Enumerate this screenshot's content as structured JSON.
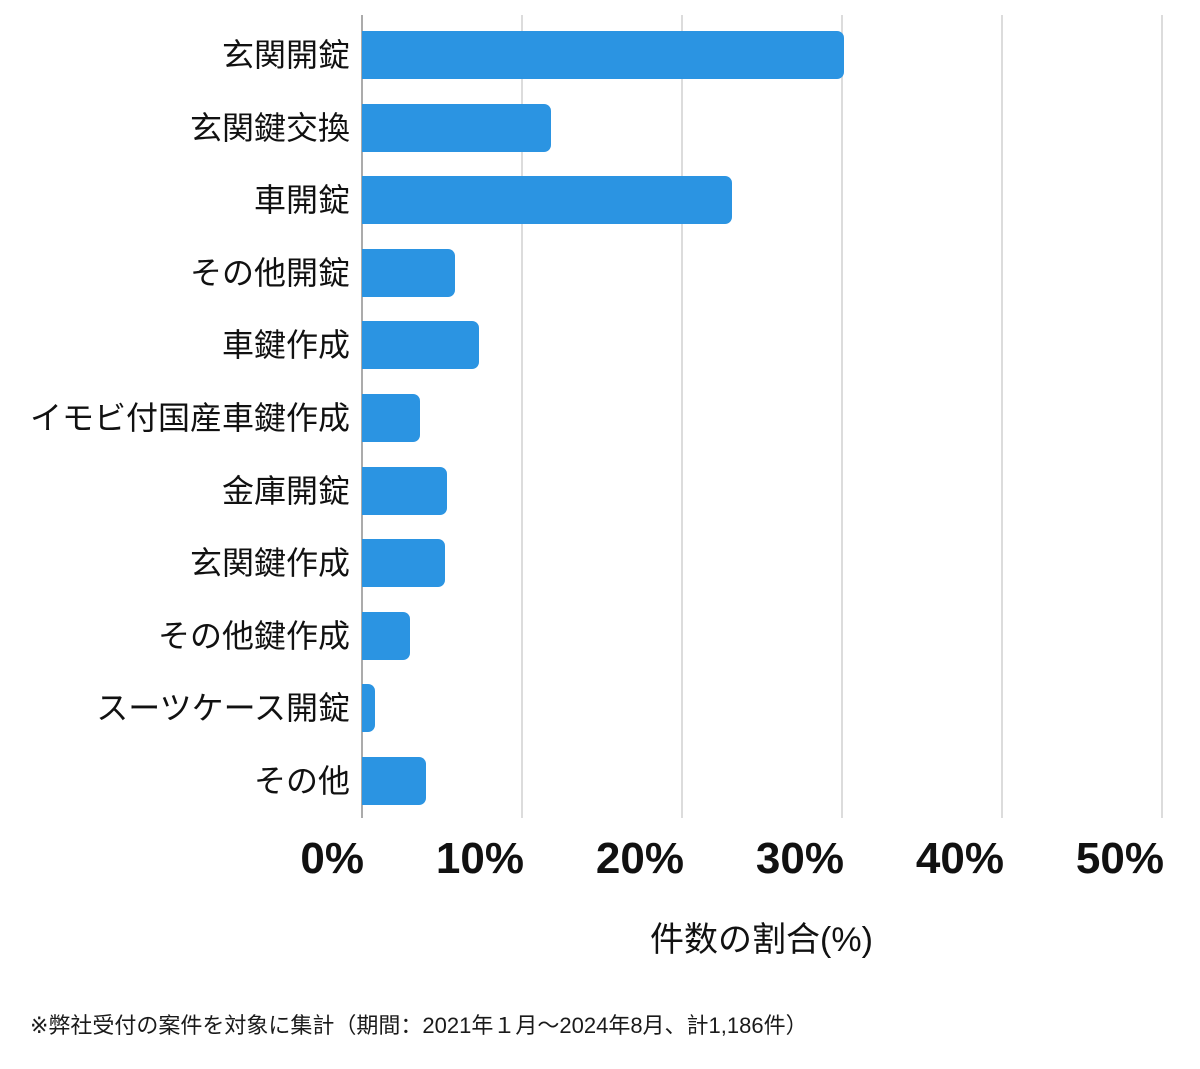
{
  "chart_data": {
    "type": "bar",
    "orientation": "horizontal",
    "categories": [
      "玄関開錠",
      "玄関鍵交換",
      "車開錠",
      "その他開錠",
      "車鍵作成",
      "イモビ付国産車鍵作成",
      "金庫開錠",
      "玄関鍵作成",
      "その他鍵作成",
      "スーツケース開錠",
      "その他"
    ],
    "values": [
      30.1,
      11.8,
      23.1,
      5.8,
      7.3,
      3.6,
      5.3,
      5.2,
      3.0,
      0.8,
      4.0
    ],
    "title": "",
    "xlabel": "件数の割合(%)",
    "ylabel": "",
    "xlim": [
      0,
      50
    ],
    "xticks": [
      0,
      10,
      20,
      30,
      40,
      50
    ],
    "xticklabels": [
      "0%",
      "10%",
      "20%",
      "30%",
      "40%",
      "50%"
    ],
    "grid": "vertical-gridlines-on",
    "legend": "none",
    "bar_color": "#2b94e2"
  },
  "footnote": "※弊社受付の案件を対象に集計（期間：2021年１月～2024年8月、計1,186件）",
  "colors": {
    "bar": "#2b94e2",
    "gridline": "#dcdcdc",
    "axis_line": "#ababab",
    "text": "#111111",
    "background": "#ffffff"
  }
}
